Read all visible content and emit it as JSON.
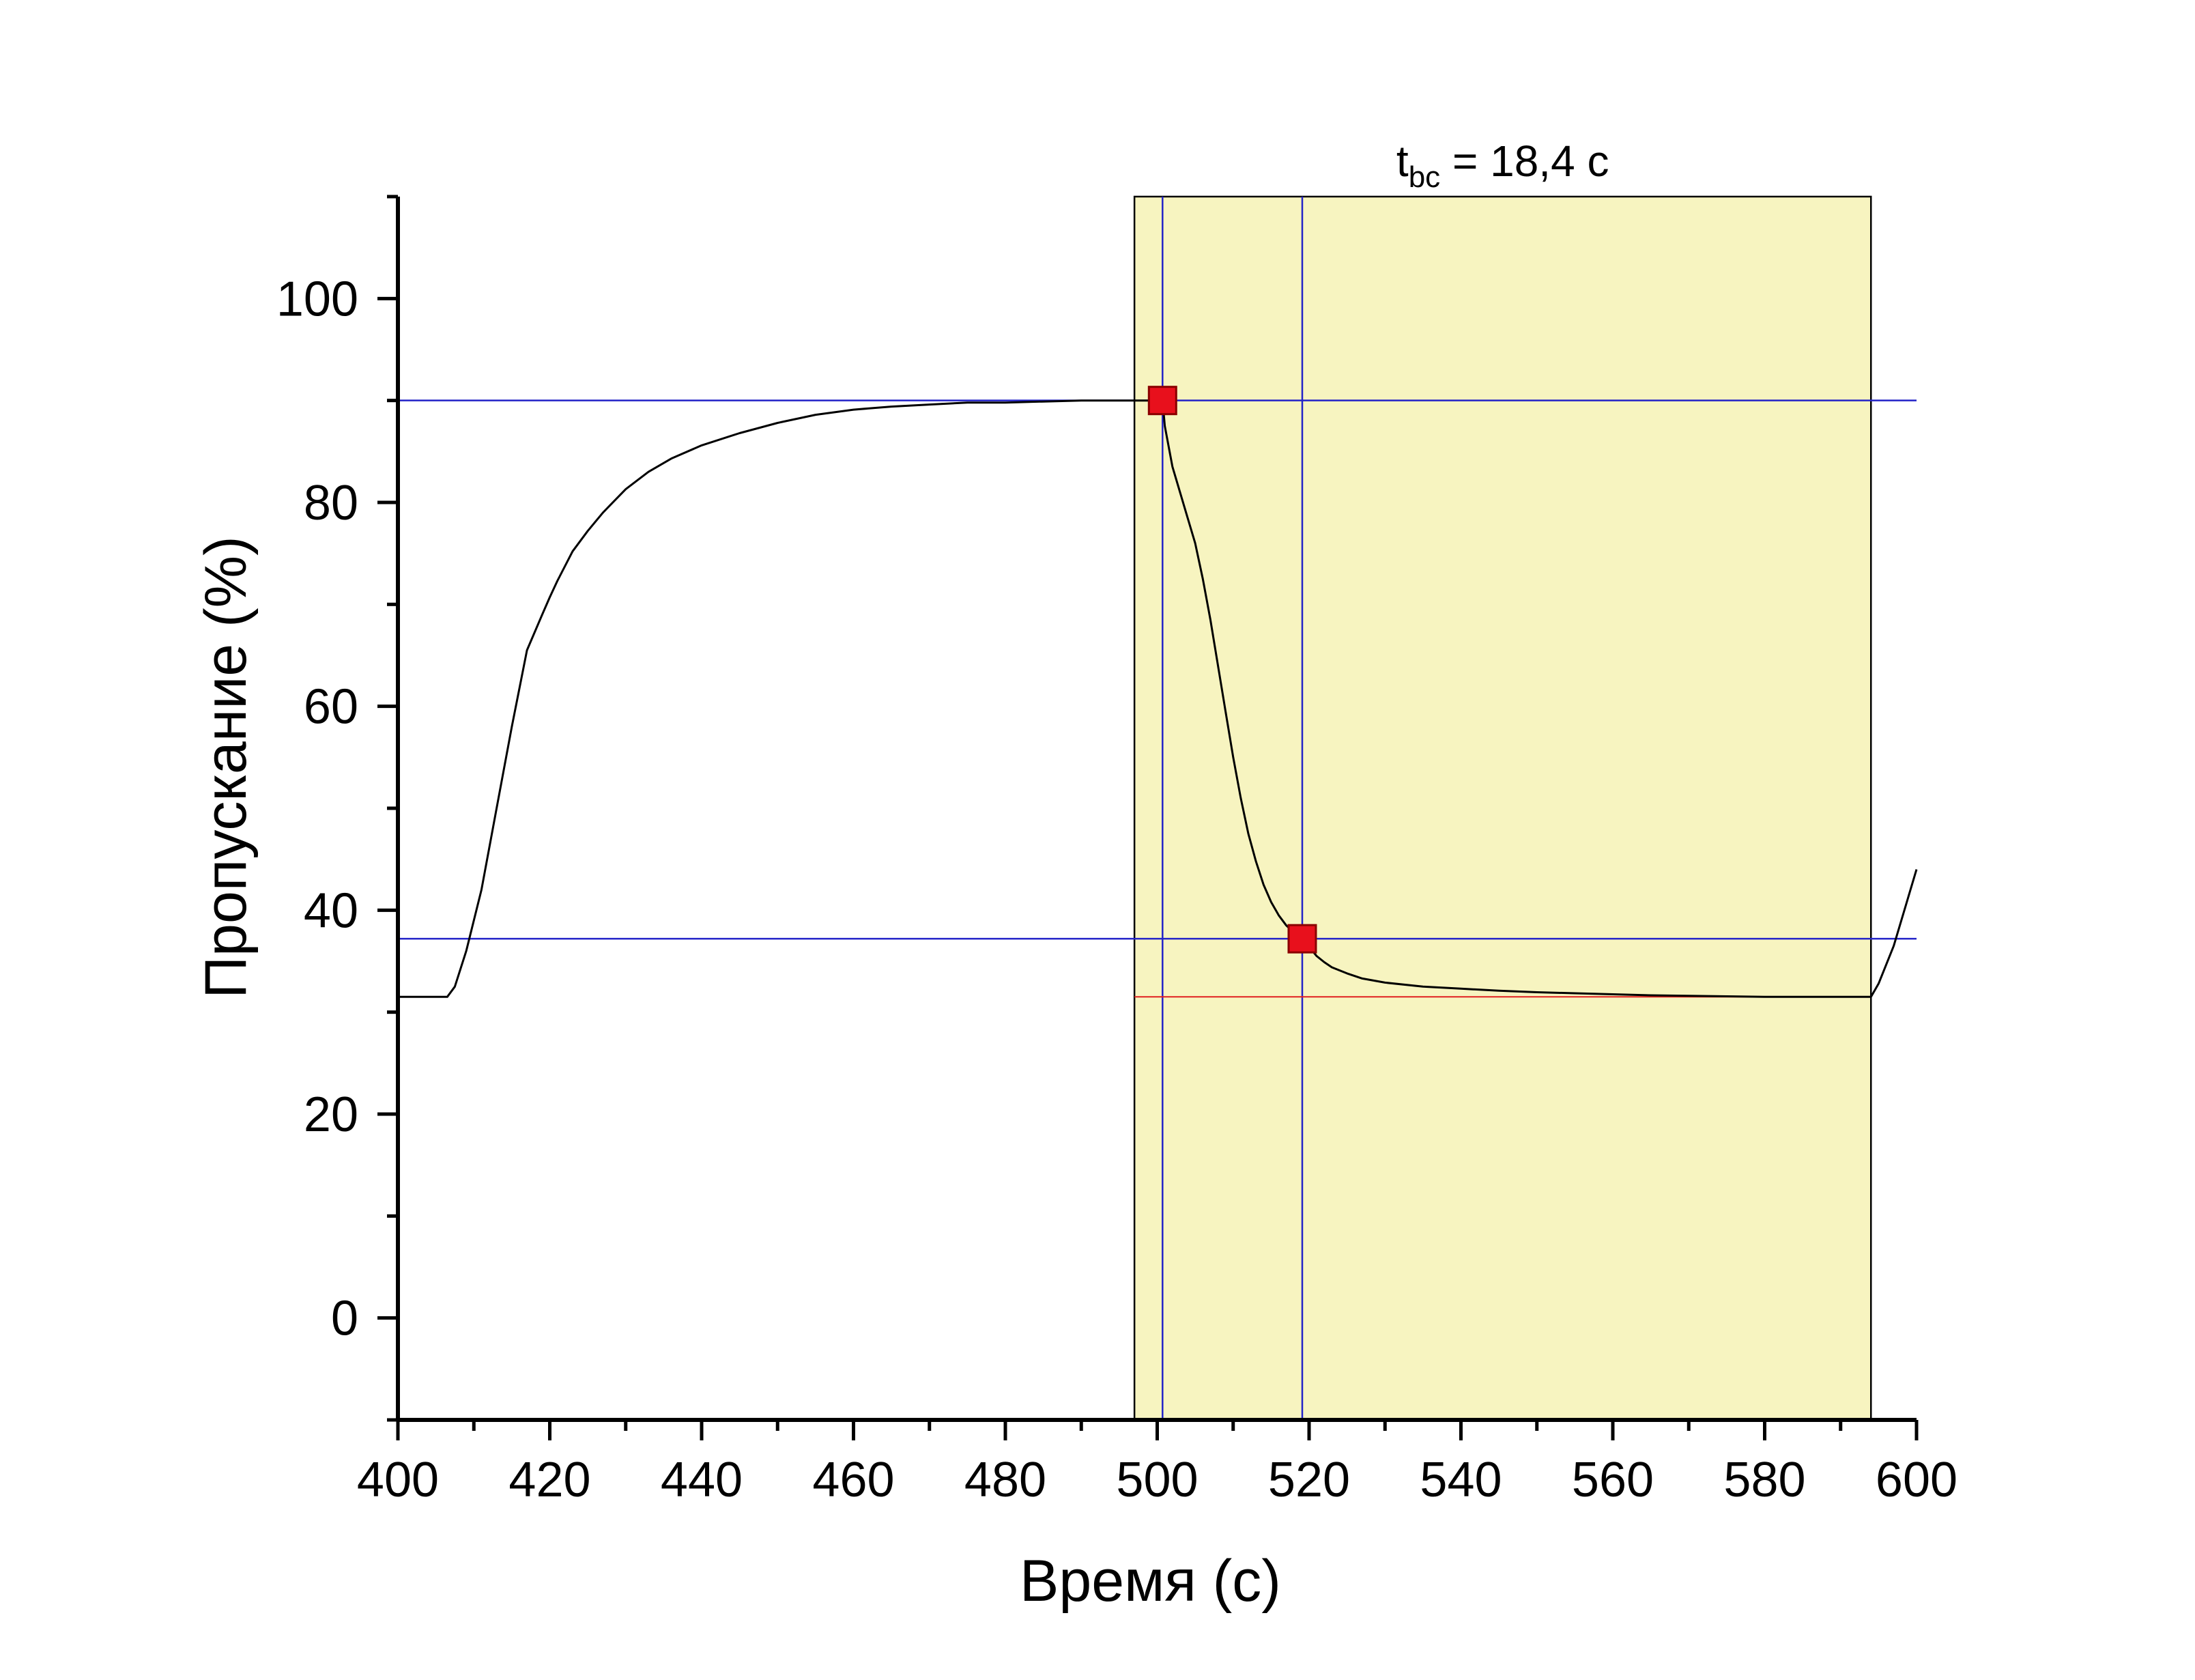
{
  "chart_data": {
    "type": "line",
    "xlabel": "Время (с)",
    "ylabel": "Пропускание (%)",
    "xlim": [
      400,
      600
    ],
    "ylim": [
      -10,
      110
    ],
    "x_ticks": [
      400,
      420,
      440,
      460,
      480,
      500,
      520,
      540,
      560,
      580,
      600
    ],
    "y_ticks": [
      0,
      20,
      40,
      60,
      80,
      100
    ],
    "grid": false,
    "annotation": {
      "main": "t",
      "sub": "bc",
      "rest": " = 18,4 с"
    },
    "highlight_region": {
      "x_start": 497,
      "x_end": 594,
      "color": "#f7f4c0"
    },
    "reference_lines": {
      "horizontal_blue": [
        90,
        37.2
      ],
      "vertical_blue": [
        500.7,
        519.1
      ],
      "horizontal_red": {
        "y": 31.5,
        "x_start": 497,
        "x_end": 594
      }
    },
    "markers": [
      {
        "x": 500.7,
        "y": 90
      },
      {
        "x": 519.1,
        "y": 37.2
      }
    ],
    "series": [
      {
        "color": "#000000",
        "x": [
          400,
          404,
          406.5,
          407.5,
          409,
          411,
          413,
          415,
          417,
          419,
          420,
          421,
          423,
          425,
          427,
          430,
          433,
          436,
          440,
          445,
          450,
          455,
          460,
          465,
          470,
          475,
          480,
          485,
          490,
          495,
          500.7,
          501,
          502,
          503,
          504,
          505,
          506,
          507,
          508,
          509,
          510,
          511,
          512,
          513,
          514,
          515,
          516,
          517,
          518,
          519.1,
          520,
          521,
          522,
          523,
          525,
          527,
          530,
          535,
          540,
          545,
          550,
          555,
          560,
          565,
          570,
          575,
          580,
          585,
          590,
          593,
          594,
          595,
          597,
          600
        ],
        "y": [
          31.5,
          31.5,
          31.5,
          32.5,
          36,
          42,
          50,
          58,
          65.5,
          69,
          70.7,
          72.3,
          75.2,
          77.2,
          79,
          81.3,
          83,
          84.3,
          85.6,
          86.8,
          87.8,
          88.6,
          89.1,
          89.4,
          89.6,
          89.8,
          89.8,
          89.9,
          90.0,
          90.0,
          90.0,
          87.5,
          83.5,
          81,
          78.5,
          76,
          72.5,
          68.5,
          64,
          59.5,
          55,
          51,
          47.5,
          44.8,
          42.5,
          40.8,
          39.5,
          38.5,
          37.8,
          37.2,
          36.4,
          35.5,
          34.9,
          34.4,
          33.8,
          33.3,
          32.9,
          32.5,
          32.3,
          32.1,
          31.95,
          31.85,
          31.75,
          31.65,
          31.6,
          31.55,
          31.5,
          31.5,
          31.5,
          31.5,
          31.5,
          32.8,
          36.5,
          44
        ]
      }
    ]
  }
}
